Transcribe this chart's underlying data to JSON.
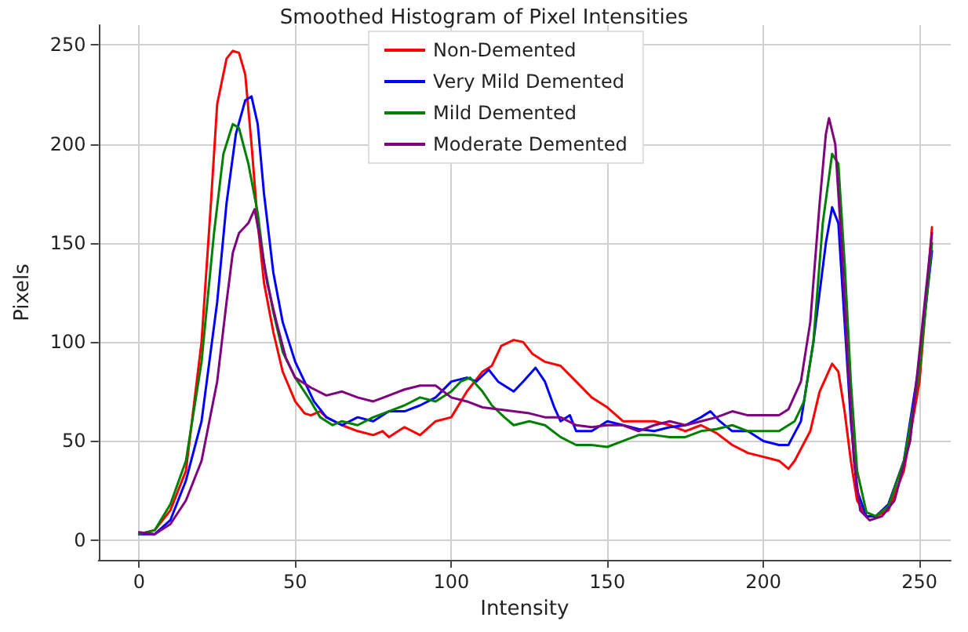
{
  "chart_data": {
    "type": "line",
    "title": "Smoothed Histogram of Pixel Intensities",
    "xlabel": "Intensity",
    "ylabel": "Pixels",
    "xlim": [
      -13,
      260
    ],
    "xticks": [
      0,
      50,
      100,
      150,
      200,
      250
    ],
    "ylim": [
      -10,
      260
    ],
    "yticks": [
      0,
      50,
      100,
      150,
      200,
      250
    ],
    "grid": true,
    "legend": "top",
    "marker": "none",
    "line_style": "solid",
    "series": [
      {
        "name": "Non-Demented",
        "color": "#ff0000",
        "x": [
          0,
          5,
          10,
          15,
          20,
          23,
          25,
          28,
          30,
          32,
          34,
          36,
          38,
          40,
          43,
          46,
          50,
          53,
          55,
          58,
          60,
          65,
          70,
          75,
          78,
          80,
          85,
          90,
          95,
          100,
          105,
          110,
          113,
          116,
          120,
          123,
          126,
          130,
          135,
          140,
          145,
          150,
          155,
          160,
          165,
          170,
          175,
          180,
          185,
          190,
          195,
          200,
          205,
          208,
          210,
          215,
          218,
          222,
          224,
          226,
          228,
          230,
          233,
          236,
          240,
          245,
          250,
          254
        ],
        "values": [
          3,
          5,
          15,
          35,
          100,
          170,
          220,
          243,
          247,
          246,
          235,
          200,
          160,
          130,
          105,
          85,
          70,
          64,
          63,
          65,
          62,
          58,
          55,
          53,
          55,
          52,
          57,
          53,
          60,
          62,
          75,
          85,
          88,
          98,
          101,
          100,
          94,
          90,
          88,
          80,
          72,
          67,
          60,
          60,
          60,
          58,
          55,
          58,
          54,
          48,
          44,
          42,
          40,
          36,
          40,
          55,
          75,
          89,
          85,
          65,
          40,
          20,
          12,
          12,
          15,
          35,
          80,
          158
        ]
      },
      {
        "name": "Very Mild Demented",
        "color": "#0000ff",
        "x": [
          0,
          5,
          10,
          15,
          20,
          25,
          28,
          31,
          34,
          36,
          38,
          40,
          43,
          46,
          50,
          53,
          56,
          60,
          65,
          70,
          75,
          80,
          85,
          90,
          95,
          100,
          105,
          108,
          112,
          115,
          120,
          123,
          127,
          130,
          133,
          135,
          138,
          140,
          145,
          150,
          155,
          160,
          165,
          170,
          175,
          180,
          183,
          186,
          190,
          195,
          200,
          205,
          208,
          212,
          216,
          220,
          222,
          224,
          226,
          228,
          230,
          233,
          236,
          240,
          245,
          250,
          254
        ],
        "values": [
          3,
          3,
          10,
          30,
          60,
          120,
          170,
          205,
          222,
          224,
          210,
          175,
          135,
          110,
          90,
          80,
          70,
          62,
          58,
          62,
          60,
          65,
          65,
          68,
          72,
          80,
          82,
          80,
          86,
          80,
          75,
          80,
          87,
          80,
          67,
          60,
          63,
          55,
          55,
          60,
          58,
          56,
          55,
          57,
          58,
          62,
          65,
          60,
          55,
          55,
          50,
          48,
          48,
          60,
          100,
          150,
          168,
          160,
          110,
          60,
          25,
          12,
          12,
          18,
          40,
          90,
          146
        ]
      },
      {
        "name": "Mild Demented",
        "color": "#008000",
        "x": [
          0,
          5,
          10,
          15,
          20,
          24,
          27,
          30,
          32,
          35,
          38,
          40,
          43,
          46,
          50,
          55,
          58,
          62,
          65,
          70,
          75,
          80,
          85,
          90,
          95,
          100,
          103,
          106,
          110,
          113,
          117,
          120,
          125,
          130,
          135,
          140,
          145,
          150,
          155,
          160,
          165,
          170,
          175,
          180,
          185,
          190,
          195,
          200,
          205,
          210,
          213,
          216,
          219,
          222,
          224,
          226,
          228,
          230,
          233,
          236,
          240,
          245,
          250,
          254
        ],
        "values": [
          3,
          5,
          18,
          40,
          90,
          155,
          195,
          210,
          208,
          190,
          165,
          140,
          115,
          95,
          82,
          70,
          62,
          58,
          60,
          58,
          62,
          65,
          68,
          72,
          70,
          75,
          80,
          82,
          75,
          68,
          62,
          58,
          60,
          58,
          52,
          48,
          48,
          47,
          50,
          53,
          53,
          52,
          52,
          55,
          56,
          58,
          55,
          55,
          55,
          60,
          70,
          100,
          160,
          195,
          190,
          140,
          80,
          35,
          14,
          12,
          17,
          40,
          85,
          150
        ]
      },
      {
        "name": "Moderate Demented",
        "color": "#800080",
        "x": [
          0,
          5,
          10,
          15,
          20,
          25,
          28,
          30,
          32,
          35,
          37,
          39,
          41,
          44,
          47,
          50,
          55,
          60,
          65,
          70,
          75,
          80,
          85,
          90,
          95,
          100,
          105,
          110,
          115,
          120,
          125,
          130,
          135,
          140,
          145,
          150,
          155,
          160,
          165,
          170,
          175,
          180,
          185,
          190,
          195,
          200,
          205,
          208,
          212,
          215,
          218,
          220,
          221,
          223,
          225,
          227,
          229,
          231,
          234,
          238,
          242,
          247,
          254
        ],
        "values": [
          4,
          3,
          8,
          20,
          40,
          80,
          120,
          145,
          155,
          160,
          167,
          150,
          130,
          110,
          92,
          82,
          77,
          73,
          75,
          72,
          70,
          73,
          76,
          78,
          78,
          72,
          70,
          67,
          66,
          65,
          64,
          62,
          62,
          58,
          57,
          58,
          58,
          55,
          58,
          60,
          58,
          60,
          62,
          65,
          63,
          63,
          63,
          66,
          80,
          110,
          170,
          205,
          213,
          200,
          150,
          90,
          40,
          15,
          10,
          12,
          20,
          50,
          155
        ]
      }
    ]
  }
}
